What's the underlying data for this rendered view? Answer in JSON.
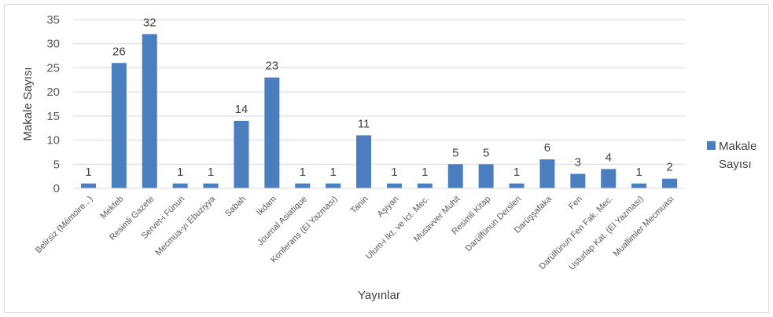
{
  "chart_data": {
    "type": "bar",
    "categories": [
      "Belirsiz (Mémoire...)",
      "Mekteb",
      "Resimli Gazete",
      "Servet-i Fünun",
      "Mecmua-yı Ebuziyya",
      "Sabah",
      "İkdam",
      "Journal Asiatique",
      "Konferans (El Yazması)",
      "Tanin",
      "Aşiyan",
      "Ulum-i İkt. ve İct. Mec.",
      "Musavver Muhit",
      "Resimli Kitap",
      "Darülfünun Dersleri",
      "Darüşşafaka",
      "Fen",
      "Darülfünun Fen Fak. Mec.",
      "Usturlap Kat. (El Yazması)",
      "Muallimler Mecmuası"
    ],
    "series": [
      {
        "name": "Makale Sayısı",
        "color": "#4a7ebf",
        "values": [
          1,
          26,
          32,
          1,
          1,
          14,
          23,
          1,
          1,
          11,
          1,
          1,
          5,
          5,
          1,
          6,
          3,
          4,
          1,
          2
        ]
      }
    ],
    "title": "",
    "xlabel": "Yayınlar",
    "ylabel": "Makale Sayısı",
    "ylim": [
      0,
      35
    ],
    "yticks": [
      0,
      5,
      10,
      15,
      20,
      25,
      30,
      35
    ],
    "grid": true,
    "legend": {
      "position": "right",
      "line1": "Makale",
      "line2": "Sayısı"
    },
    "data_labels": true
  }
}
